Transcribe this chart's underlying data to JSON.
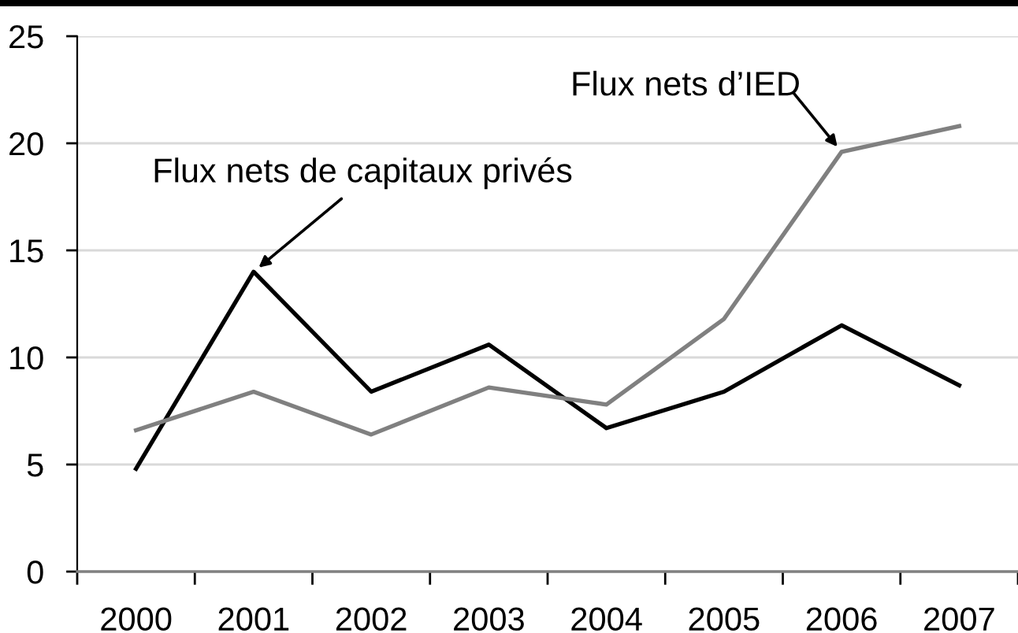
{
  "chart_data": {
    "type": "line",
    "categories": [
      "2000",
      "2001",
      "2002",
      "2003",
      "2004",
      "2005",
      "2006",
      "2007"
    ],
    "series": [
      {
        "color": "#000000",
        "values": [
          4.8,
          14.0,
          8.4,
          10.6,
          6.7,
          8.4,
          11.5,
          8.7
        ]
      },
      {
        "color": "#808080",
        "values": [
          6.6,
          8.4,
          6.4,
          8.6,
          7.8,
          11.8,
          19.6,
          20.8
        ]
      }
    ],
    "ylim": [
      0,
      25
    ],
    "yticks": [
      0,
      5,
      10,
      15,
      20,
      25
    ],
    "grid": "y",
    "line_style": "solid",
    "annotations": [
      {
        "text": "Flux nets de capitaux privés",
        "x": "2001",
        "y": 14.0
      },
      {
        "text": "Flux nets d’IED",
        "x": "2006",
        "y": 19.6
      }
    ]
  }
}
